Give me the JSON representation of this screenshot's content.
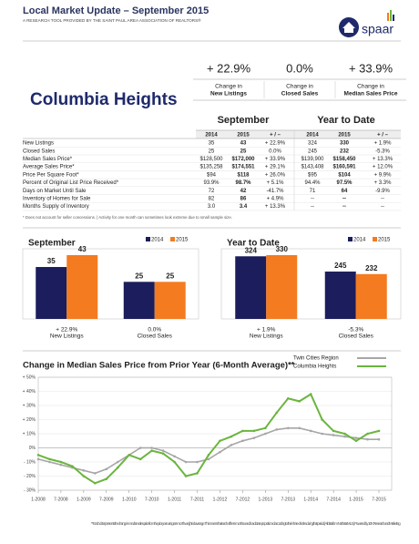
{
  "header": {
    "title": "Local Market Update – September 2015",
    "subtitle": "A RESEARCH TOOL PROVIDED BY THE SAINT PAUL AREA ASSOCIATION OF REALTORS®",
    "logo": "spaar"
  },
  "summary": [
    {
      "value": "+ 22.9%",
      "caption": "Change in",
      "label": "New Listings"
    },
    {
      "value": "0.0%",
      "caption": "Change in",
      "label": "Closed Sales"
    },
    {
      "value": "+ 33.9%",
      "caption": "Change in",
      "label": "Median Sales Price"
    }
  ],
  "area": "Columbia Heights",
  "table": {
    "groups": [
      "September",
      "Year to Date"
    ],
    "columns": [
      "2014",
      "2015",
      "+ / –",
      "2014",
      "2015",
      "+ / –"
    ],
    "rows": [
      [
        "New Listings",
        "35",
        "43",
        "+ 22.9%",
        "324",
        "330",
        "+ 1.9%"
      ],
      [
        "Closed Sales",
        "25",
        "25",
        "0.0%",
        "245",
        "232",
        "-5.3%"
      ],
      [
        "Median Sales Price*",
        "$128,500",
        "$172,000",
        "+ 33.9%",
        "$139,900",
        "$158,450",
        "+ 13.3%"
      ],
      [
        "Average Sales Price*",
        "$135,258",
        "$174,551",
        "+ 29.1%",
        "$143,408",
        "$160,591",
        "+ 12.0%"
      ],
      [
        "Price Per Square Foot*",
        "$94",
        "$118",
        "+ 26.0%",
        "$95",
        "$104",
        "+ 9.9%"
      ],
      [
        "Percent of Original List Price Received*",
        "93.9%",
        "98.7%",
        "+ 5.1%",
        "94.4%",
        "97.5%",
        "+ 3.3%"
      ],
      [
        "Days on Market Until Sale",
        "72",
        "42",
        "-41.7%",
        "71",
        "64",
        "-9.9%"
      ],
      [
        "Inventory of Homes for Sale",
        "82",
        "86",
        "+ 4.9%",
        "--",
        "--",
        "--"
      ],
      [
        "Months Supply of Inventory",
        "3.0",
        "3.4",
        "+ 13.3%",
        "--",
        "--",
        "--"
      ]
    ],
    "footnote": "* Does not account for seller concessions.  |  Activity for one month can sometimes look extreme due to small sample size."
  },
  "chart_data": [
    {
      "type": "bar",
      "title": "September",
      "categories": [
        "New Listings",
        "Closed Sales"
      ],
      "change_labels": [
        "+ 22.9%",
        "0.0%"
      ],
      "series": [
        {
          "name": "2014",
          "color": "#1b1d5c",
          "values": [
            35,
            25
          ]
        },
        {
          "name": "2015",
          "color": "#f47b20",
          "values": [
            43,
            25
          ]
        }
      ]
    },
    {
      "type": "bar",
      "title": "Year to Date",
      "categories": [
        "New Listings",
        "Closed Sales"
      ],
      "change_labels": [
        "+ 1.9%",
        "-5.3%"
      ],
      "series": [
        {
          "name": "2014",
          "color": "#1b1d5c",
          "values": [
            324,
            245
          ]
        },
        {
          "name": "2015",
          "color": "#f47b20",
          "values": [
            330,
            232
          ]
        }
      ]
    },
    {
      "type": "line",
      "title": "Change in Median Sales Price from Prior Year (6-Month Average)**",
      "categories": [
        "1-2008",
        null,
        "7-2008",
        null,
        "1-2009",
        null,
        "7-2009",
        null,
        "1-2010",
        null,
        "7-2010",
        null,
        "1-2011",
        null,
        "7-2011",
        null,
        "1-2012",
        null,
        "7-2012",
        null,
        "1-2013",
        null,
        "7-2013",
        null,
        "1-2014",
        null,
        "7-2014",
        null,
        "1-2015",
        null,
        "7-2015"
      ],
      "series": [
        {
          "name": "Twin Cities Region",
          "color": "#a6a6a6",
          "values": [
            -8,
            -10,
            -12,
            -14,
            -16,
            -18,
            -15,
            -10,
            -5,
            0,
            0,
            -2,
            -6,
            -10,
            -10,
            -8,
            -3,
            2,
            5,
            7,
            10,
            13,
            14,
            14,
            12,
            10,
            9,
            8,
            7,
            6,
            6
          ]
        },
        {
          "name": "Columbia Heights",
          "color": "#6ab53e",
          "values": [
            -5,
            -8,
            -10,
            -13,
            -20,
            -25,
            -22,
            -14,
            -5,
            -8,
            -2,
            -4,
            -10,
            -20,
            -18,
            -5,
            5,
            8,
            12,
            12,
            14,
            25,
            35,
            33,
            38,
            20,
            12,
            10,
            5,
            10,
            12
          ]
        }
      ],
      "ylim": [
        -30,
        50
      ],
      "yticks": [
        {
          "value": -30,
          "label": "- 30%"
        },
        {
          "value": -20,
          "label": "- 20%"
        },
        {
          "value": -10,
          "label": "- 10%"
        },
        {
          "value": 0,
          "label": "0%"
        },
        {
          "value": 10,
          "label": "+ 10%"
        },
        {
          "value": 20,
          "label": "+ 20%"
        },
        {
          "value": 30,
          "label": "+ 30%"
        },
        {
          "value": 40,
          "label": "+ 40%"
        },
        {
          "value": 50,
          "label": "+ 50%"
        }
      ],
      "grid": true
    }
  ],
  "footnote": "** Each dot represents the change in median sales price from the prior year using a 6-month weighted average. This means that each of the 6 months used in a dot are proportioned according to their share of sales during that period.  |  All data from NorthstarMLS.  |  Powered by 10K Research and Marketing."
}
